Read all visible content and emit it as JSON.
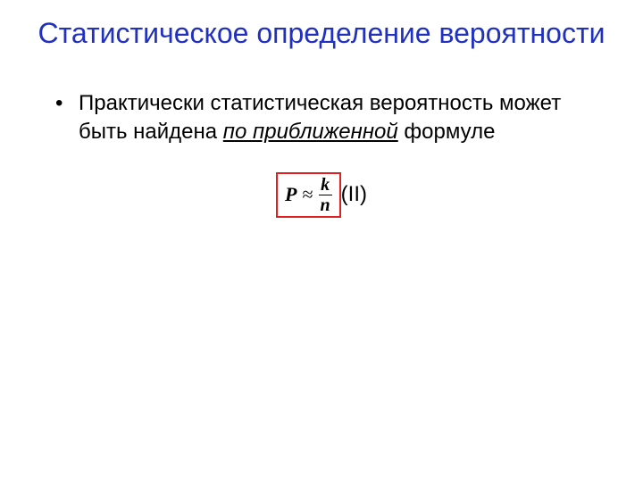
{
  "title": {
    "text": "Статистическое определение вероятности",
    "color": "#2030c0",
    "font_size": 32,
    "font_weight": 400
  },
  "bullet": {
    "marker": "•",
    "text_prefix": "Практически статистическая вероятность может быть найдена ",
    "text_emph": "по приближенной",
    "text_suffix": " формуле",
    "font_size": 24,
    "color": "#000000"
  },
  "formula": {
    "P": "P",
    "approx": "≈",
    "numerator": "k",
    "denominator": "n",
    "label": "(II)",
    "border_color": "#e02020",
    "font_color": "#000000",
    "font_family": "Times New Roman",
    "font_size": 22,
    "border_width": 2
  },
  "background_color": "#ffffff",
  "slide_width": 720,
  "slide_height": 540
}
